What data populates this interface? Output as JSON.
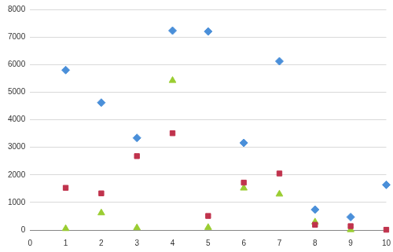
{
  "chart_data": {
    "type": "scatter",
    "x": [
      1,
      2,
      3,
      4,
      5,
      6,
      7,
      8,
      9,
      10
    ],
    "series": [
      {
        "color": "#4a8fd9",
        "marker": "diamond",
        "values": [
          5800,
          4620,
          3340,
          7230,
          7200,
          3160,
          6120,
          740,
          470,
          1640
        ]
      },
      {
        "color": "#c0334d",
        "marker": "square",
        "values": [
          1530,
          1330,
          2680,
          3510,
          510,
          1720,
          2050,
          190,
          140,
          10
        ]
      },
      {
        "color": "#9acd32",
        "marker": "triangle",
        "values": [
          50,
          620,
          80,
          5420,
          90,
          1520,
          1300,
          290,
          10,
          null
        ]
      }
    ],
    "xlim": [
      0,
      10
    ],
    "xticks": [
      0,
      1,
      2,
      3,
      4,
      5,
      6,
      7,
      8,
      9,
      10
    ],
    "ylim": [
      0,
      8000
    ],
    "yticks": [
      0,
      1000,
      2000,
      3000,
      4000,
      5000,
      6000,
      7000,
      8000
    ],
    "grid": true
  }
}
